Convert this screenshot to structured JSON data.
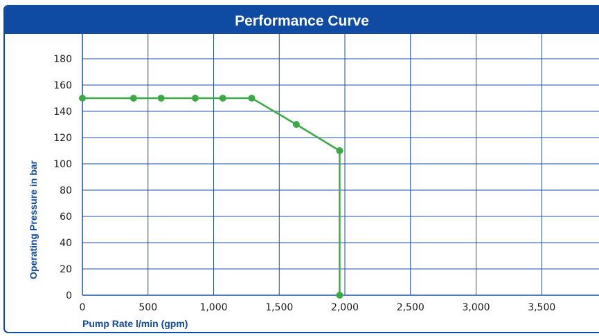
{
  "chart_data": {
    "type": "line",
    "title": "Performance Curve",
    "xlabel": "Pump Rate l/min (gpm)",
    "ylabel": "Operating Pressure in bar",
    "xlim": [
      0,
      4000
    ],
    "ylim": [
      0,
      200
    ],
    "x_ticks": [
      "0",
      "500",
      "1,000",
      "1,500",
      "2,000",
      "2,500",
      "3,000",
      "3,500"
    ],
    "y_ticks": [
      "0",
      "20",
      "40",
      "60",
      "80",
      "100",
      "120",
      "140",
      "160",
      "180"
    ],
    "grid": true,
    "series": [
      {
        "color": "#3aaa45",
        "points": [
          [
            0,
            150
          ],
          [
            390,
            150
          ],
          [
            600,
            150
          ],
          [
            860,
            150
          ],
          [
            1070,
            150
          ],
          [
            1290,
            150
          ],
          [
            1630,
            130
          ],
          [
            1960,
            110
          ],
          [
            1960,
            0
          ]
        ]
      }
    ]
  },
  "colors": {
    "frame": "#0f4aa3",
    "grid": "#1f4fa8",
    "series": "#3aaa45"
  }
}
